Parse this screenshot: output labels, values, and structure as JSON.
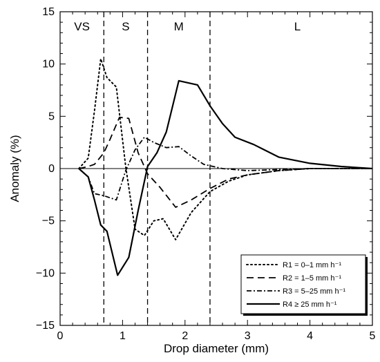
{
  "chart_data": {
    "type": "line",
    "xlabel": "Drop diameter (mm)",
    "ylabel": "Anomaly (%)",
    "xlim": [
      0,
      5
    ],
    "ylim": [
      -15,
      15
    ],
    "xticks": [
      0,
      1,
      2,
      3,
      4,
      5
    ],
    "yticks": [
      -15,
      -10,
      -5,
      0,
      5,
      10,
      15
    ],
    "xtick_labels": [
      "0",
      "1",
      "2",
      "3",
      "4",
      "5"
    ],
    "ytick_labels": [
      "−15",
      "−10",
      "−5",
      "0",
      "5",
      "10",
      "15"
    ],
    "grid": false,
    "legend_position": "bottom-right",
    "zero_line": true,
    "regions": [
      {
        "label": "VS",
        "x_center": 0.35
      },
      {
        "label": "S",
        "x_center": 1.05
      },
      {
        "label": "M",
        "x_center": 1.9
      },
      {
        "label": "L",
        "x_center": 3.8
      }
    ],
    "region_boundaries": [
      0.7,
      1.4,
      2.4
    ],
    "series": [
      {
        "name": "R1 = 0–1  mm h⁻¹",
        "style": "dotted",
        "x": [
          0.3,
          0.45,
          0.55,
          0.65,
          0.75,
          0.9,
          1.05,
          1.2,
          1.35,
          1.5,
          1.65,
          1.85,
          2.1,
          2.4,
          2.7,
          3.0,
          3.5,
          4.0,
          4.5,
          5.0
        ],
        "y": [
          0.0,
          1.0,
          5.5,
          10.5,
          8.7,
          7.8,
          0.2,
          -5.8,
          -6.4,
          -5.0,
          -4.8,
          -6.8,
          -4.2,
          -2.2,
          -1.2,
          -0.6,
          -0.2,
          0.0,
          0.0,
          0.0
        ]
      },
      {
        "name": "R2 = 1–5  mm h⁻¹",
        "style": "dashed",
        "x": [
          0.3,
          0.45,
          0.55,
          0.7,
          0.8,
          0.95,
          1.1,
          1.25,
          1.4,
          1.6,
          1.85,
          2.1,
          2.4,
          2.7,
          3.0,
          3.5,
          4.0,
          4.5,
          5.0
        ],
        "y": [
          0.0,
          0.2,
          0.4,
          1.5,
          2.8,
          4.9,
          4.8,
          1.5,
          -0.5,
          -1.8,
          -3.7,
          -3.0,
          -1.9,
          -1.0,
          -0.6,
          -0.2,
          0.0,
          0.0,
          0.0
        ]
      },
      {
        "name": "R3 = 5–25 mm h⁻¹",
        "style": "dashdot",
        "x": [
          0.3,
          0.45,
          0.55,
          0.7,
          0.9,
          1.05,
          1.2,
          1.35,
          1.5,
          1.7,
          1.9,
          2.1,
          2.3,
          2.6,
          3.0,
          3.5,
          4.0,
          4.5,
          5.0
        ],
        "y": [
          0.0,
          -0.8,
          -2.4,
          -2.6,
          -3.0,
          -0.2,
          1.8,
          3.0,
          2.5,
          2.0,
          2.1,
          1.2,
          0.4,
          0.0,
          -0.2,
          -0.1,
          0.0,
          0.0,
          0.0
        ]
      },
      {
        "name": "R4 ≥ 25  mm h⁻¹",
        "style": "solid",
        "x": [
          0.3,
          0.45,
          0.55,
          0.65,
          0.75,
          0.92,
          1.1,
          1.25,
          1.4,
          1.55,
          1.7,
          1.9,
          2.2,
          2.4,
          2.6,
          2.8,
          3.1,
          3.5,
          4.0,
          4.5,
          5.0
        ],
        "y": [
          0.0,
          -0.8,
          -3.0,
          -5.4,
          -6.0,
          -10.2,
          -8.5,
          -4.0,
          0.2,
          1.5,
          3.5,
          8.4,
          8.0,
          6.0,
          4.3,
          3.0,
          2.3,
          1.1,
          0.5,
          0.2,
          0.0
        ]
      }
    ]
  }
}
